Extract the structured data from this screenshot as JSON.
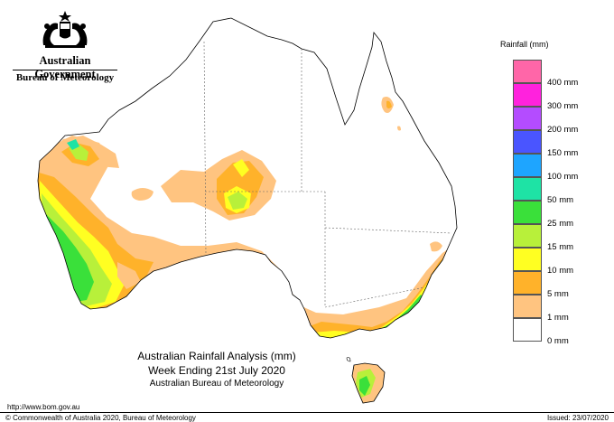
{
  "organisation": {
    "government": "Australian Government",
    "bureau": "Bureau of Meteorology"
  },
  "map_title": {
    "line1": "Australian Rainfall Analysis (mm)",
    "line2": "Week Ending 21st July 2020",
    "line3": "Australian Bureau of Meteorology"
  },
  "legend": {
    "title": "Rainfall (mm)",
    "items": [
      {
        "label": "",
        "color": "#ff66a8"
      },
      {
        "label": "400 mm",
        "color": "#ff22dd"
      },
      {
        "label": "300 mm",
        "color": "#b44cff"
      },
      {
        "label": "200 mm",
        "color": "#4a55ff"
      },
      {
        "label": "150 mm",
        "color": "#1ea5ff"
      },
      {
        "label": "100 mm",
        "color": "#1ee3a5"
      },
      {
        "label": "50 mm",
        "color": "#3ae03a"
      },
      {
        "label": "25 mm",
        "color": "#b8f03a"
      },
      {
        "label": "15 mm",
        "color": "#ffff22"
      },
      {
        "label": "10 mm",
        "color": "#ffb22a"
      },
      {
        "label": "5 mm",
        "color": "#ffc480"
      },
      {
        "label": "1 mm",
        "color": "#ffffff"
      },
      {
        "label": "0 mm",
        "color": ""
      }
    ]
  },
  "footer": {
    "url": "http://www.bom.gov.au",
    "copyright": "© Commonwealth of Australia 2020, Bureau of Meteorology",
    "issued": "Issued: 23/07/2020"
  }
}
